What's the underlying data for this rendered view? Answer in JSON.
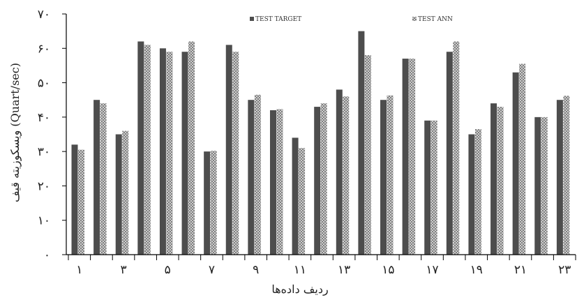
{
  "chart_data": {
    "type": "bar",
    "xlabel": "ردیف داده‌ها",
    "ylabel": "ویسکوزیته قیف (Quart/sec)",
    "ylim": [
      0,
      70
    ],
    "yticks": [
      0,
      10,
      20,
      30,
      40,
      50,
      60,
      70
    ],
    "ytick_labels": [
      "٠",
      "١٠",
      "٢٠",
      "٣٠",
      "۴٠",
      "۵٠",
      "۶٠",
      "٧٠"
    ],
    "categories": [
      "1",
      "2",
      "3",
      "4",
      "5",
      "6",
      "7",
      "8",
      "9",
      "10",
      "11",
      "12",
      "13",
      "14",
      "15",
      "16",
      "17",
      "18",
      "19",
      "20",
      "21",
      "22",
      "23"
    ],
    "xtick_labels": [
      "١",
      "٣",
      "۵",
      "٧",
      "٩",
      "١١",
      "١٣",
      "١۵",
      "١٧",
      "١٩",
      "٢١",
      "٢٣"
    ],
    "series": [
      {
        "name": "TEST TARGET",
        "color": "#4d4d4d",
        "values": [
          32,
          45,
          35,
          62,
          60,
          59,
          30,
          61,
          45,
          42,
          34,
          43,
          48,
          65,
          45,
          57,
          39,
          59,
          35,
          44,
          53,
          40,
          45
        ]
      },
      {
        "name": "TEST ANN",
        "color": "#bdbdbd",
        "pattern": "crosshatch",
        "values": [
          30.5,
          44,
          36,
          61,
          59,
          62,
          30.2,
          59,
          46.5,
          42.3,
          31,
          44,
          46,
          58,
          46.3,
          57,
          39,
          62,
          36.5,
          43,
          55.5,
          40,
          46.2
        ]
      }
    ],
    "legend_position": "top"
  }
}
